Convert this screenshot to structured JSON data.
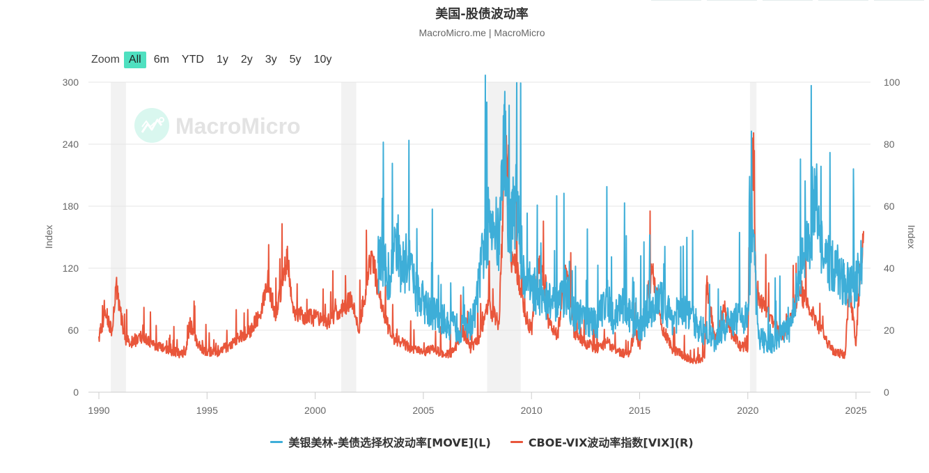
{
  "header": {
    "title": "美国-股债波动率",
    "subtitle": "MacroMicro.me | MacroMicro"
  },
  "zoom": {
    "label": "Zoom",
    "buttons": [
      "All",
      "6m",
      "YTD",
      "1y",
      "2y",
      "3y",
      "5y",
      "10y"
    ],
    "active": "All"
  },
  "watermark": {
    "text": "MacroMicro",
    "icon": "macromicro-logo-icon"
  },
  "colors": {
    "move": "#3eaed8",
    "vix": "#e9563b",
    "recession": "#f2f2f2",
    "grid": "#e6e6e6",
    "accent": "#4fe0c0"
  },
  "legend": {
    "move": "美银美林-美债选择权波动率[MOVE](L)",
    "vix": "CBOE-VIX波动率指数[VIX](R)"
  },
  "axes": {
    "left_label": "Index",
    "right_label": "Index",
    "left_ticks": [
      "0",
      "60",
      "120",
      "180",
      "240",
      "300"
    ],
    "right_ticks": [
      "0",
      "20",
      "40",
      "60",
      "80",
      "100"
    ],
    "x_ticks": [
      "1990",
      "1995",
      "2000",
      "2005",
      "2010",
      "2015",
      "2020",
      "2025"
    ]
  },
  "chart_data": {
    "type": "line",
    "title": "美国-股债波动率",
    "subtitle": "MacroMicro.me | MacroMicro",
    "xlabel": "",
    "ylabel_left": "Index",
    "ylabel_right": "Index",
    "ylim_left": [
      0,
      300
    ],
    "ylim_right": [
      0,
      100
    ],
    "xlim": [
      1990,
      2025.4
    ],
    "grid": true,
    "legend_position": "bottom",
    "recession_bands": [
      [
        1990.55,
        1991.25
      ],
      [
        2001.2,
        2001.9
      ],
      [
        2007.95,
        2009.5
      ],
      [
        2020.1,
        2020.4
      ]
    ],
    "series": [
      {
        "name": "美银美林-美债选择权波动率[MOVE](L)",
        "axis": "left",
        "color": "#3eaed8",
        "x": [
          2002.9,
          2003.2,
          2003.5,
          2003.7,
          2004.0,
          2004.3,
          2004.6,
          2005.0,
          2005.4,
          2005.8,
          2006.2,
          2006.6,
          2007.0,
          2007.4,
          2007.6,
          2007.9,
          2008.2,
          2008.5,
          2008.75,
          2008.85,
          2009.0,
          2009.3,
          2009.6,
          2010.0,
          2010.4,
          2010.8,
          2011.2,
          2011.6,
          2012.0,
          2012.5,
          2013.0,
          2013.5,
          2013.8,
          2014.2,
          2014.6,
          2015.0,
          2015.5,
          2016.0,
          2016.5,
          2017.0,
          2017.5,
          2018.0,
          2018.5,
          2019.0,
          2019.5,
          2020.0,
          2020.2,
          2020.5,
          2021.0,
          2021.5,
          2022.0,
          2022.3,
          2022.6,
          2022.9,
          2023.2,
          2023.5,
          2023.9,
          2024.3,
          2024.7,
          2025.0,
          2025.3
        ],
        "values": [
          125,
          118,
          108,
          158,
          118,
          132,
          100,
          88,
          78,
          72,
          65,
          62,
          60,
          75,
          110,
          155,
          175,
          140,
          265,
          190,
          160,
          185,
          120,
          100,
          95,
          88,
          80,
          98,
          75,
          70,
          65,
          95,
          70,
          88,
          72,
          60,
          82,
          88,
          72,
          78,
          68,
          58,
          50,
          66,
          70,
          75,
          162,
          52,
          45,
          55,
          65,
          105,
          135,
          145,
          198,
          120,
          125,
          112,
          100,
          98,
          140
        ]
      },
      {
        "name": "CBOE-VIX波动率指数[VIX](R)",
        "axis": "right",
        "color": "#e9563b",
        "x": [
          1990.0,
          1990.3,
          1990.6,
          1990.8,
          1991.0,
          1991.2,
          1991.6,
          1992.0,
          1992.5,
          1993.0,
          1993.5,
          1994.0,
          1994.2,
          1994.6,
          1995.0,
          1995.5,
          1996.0,
          1996.5,
          1997.0,
          1997.5,
          1997.8,
          1998.2,
          1998.7,
          1999.0,
          1999.5,
          2000.0,
          2000.5,
          2001.0,
          2001.7,
          2002.0,
          2002.6,
          2003.0,
          2003.5,
          2004.0,
          2004.5,
          2005.0,
          2005.5,
          2006.0,
          2006.4,
          2006.8,
          2007.2,
          2007.6,
          2008.0,
          2008.5,
          2008.8,
          2009.0,
          2009.3,
          2009.7,
          2010.0,
          2010.4,
          2010.8,
          2011.2,
          2011.6,
          2012.0,
          2012.5,
          2013.0,
          2013.5,
          2014.0,
          2014.5,
          2014.8,
          2015.0,
          2015.6,
          2016.0,
          2016.5,
          2017.0,
          2017.5,
          2018.0,
          2018.1,
          2018.5,
          2018.9,
          2019.2,
          2019.6,
          2020.0,
          2020.2,
          2020.4,
          2020.8,
          2021.2,
          2021.6,
          2022.0,
          2022.4,
          2022.8,
          2023.2,
          2023.6,
          2024.0,
          2024.5,
          2024.7,
          2025.0,
          2025.25,
          2025.35
        ],
        "values": [
          18,
          25,
          20,
          35,
          26,
          17,
          16,
          18,
          15,
          14,
          13,
          12,
          22,
          15,
          13,
          13,
          15,
          18,
          20,
          26,
          36,
          24,
          44,
          26,
          24,
          24,
          22,
          26,
          30,
          20,
          44,
          30,
          18,
          16,
          14,
          13,
          14,
          12,
          13,
          20,
          14,
          18,
          28,
          22,
          80,
          45,
          40,
          25,
          20,
          44,
          22,
          18,
          40,
          18,
          16,
          14,
          16,
          13,
          12,
          20,
          15,
          40,
          22,
          14,
          12,
          10,
          11,
          35,
          16,
          28,
          20,
          15,
          14,
          82,
          30,
          28,
          22,
          18,
          25,
          32,
          28,
          22,
          17,
          13,
          12,
          35,
          15,
          45,
          52
        ]
      }
    ]
  }
}
